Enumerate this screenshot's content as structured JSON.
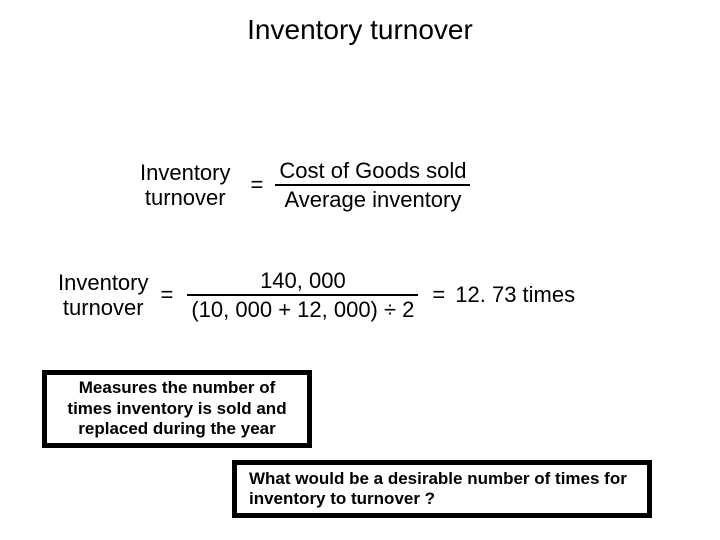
{
  "title": "Inventory turnover",
  "formula1": {
    "lhs_line1": "Inventory",
    "lhs_line2": "turnover",
    "numerator": " Cost of Goods sold",
    "denominator": "Average inventory",
    "equals": "="
  },
  "formula2": {
    "lhs_line1": "Inventory",
    "lhs_line2": "turnover",
    "equals1": "=",
    "numerator": "140, 000",
    "denominator": "(10, 000 + 12, 000) ÷ 2",
    "equals2": "=",
    "result": "12. 73 times"
  },
  "box1": "Measures the number of times inventory is sold and replaced during the year",
  "box2": "What would be a desirable number of times  for inventory to turnover ?",
  "style": {
    "background": "#ffffff",
    "text_color": "#000000",
    "border_color": "#000000",
    "title_fontsize": 28,
    "formula_fontsize": 22,
    "box_fontsize": 17,
    "box_border_width": 5,
    "font_family": "Arial"
  }
}
